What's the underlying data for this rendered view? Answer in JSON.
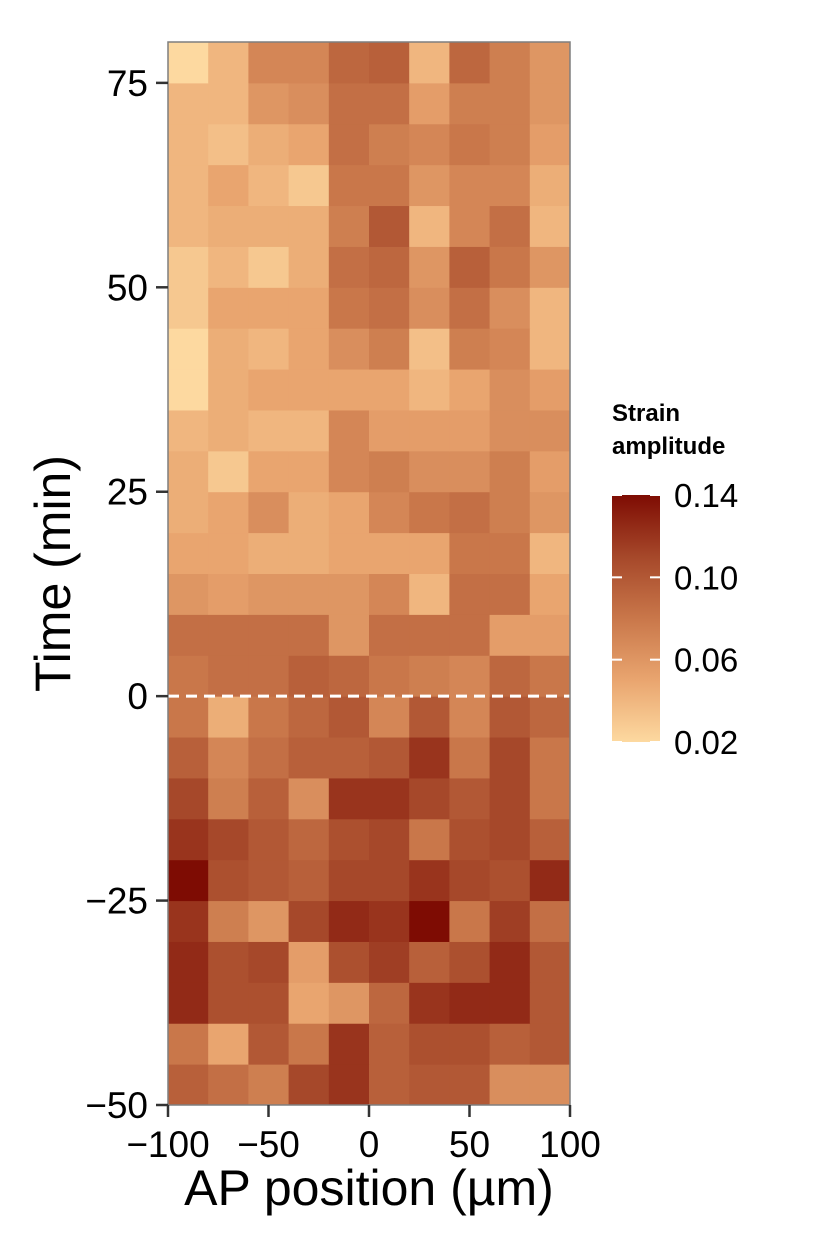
{
  "chart_data": {
    "type": "heatmap",
    "title": "",
    "xlabel": "AP position (µm)",
    "ylabel": "Time (min)",
    "xlim": [
      -100,
      100
    ],
    "ylim": [
      -50,
      80
    ],
    "x_ticks": [
      -100,
      -50,
      0,
      50,
      100
    ],
    "x_tick_labels": [
      "−100",
      "−50",
      "0",
      "50",
      "100"
    ],
    "y_ticks": [
      -50,
      -25,
      0,
      25,
      50,
      75
    ],
    "y_tick_labels": [
      "−50",
      "−25",
      "0",
      "25",
      "50",
      "75"
    ],
    "x_centers": [
      -90,
      -70,
      -50,
      -30,
      -10,
      10,
      30,
      50,
      70,
      90
    ],
    "y_centers": [
      -47.5,
      -42.5,
      -37.5,
      -32.5,
      -27.5,
      -22.5,
      -17.5,
      -12.5,
      -7.5,
      -2.5,
      2.5,
      7.5,
      12.5,
      17.5,
      22.5,
      27.5,
      32.5,
      37.5,
      42.5,
      47.5,
      52.5,
      57.5,
      62.5,
      67.5,
      72.5,
      77.5
    ],
    "z": [
      [
        0.095,
        0.085,
        0.075,
        0.11,
        0.12,
        0.095,
        0.1,
        0.1,
        0.065,
        0.065
      ],
      [
        0.08,
        0.05,
        0.1,
        0.08,
        0.12,
        0.095,
        0.105,
        0.105,
        0.095,
        0.1
      ],
      [
        0.125,
        0.105,
        0.105,
        0.05,
        0.06,
        0.09,
        0.12,
        0.125,
        0.125,
        0.1
      ],
      [
        0.125,
        0.105,
        0.11,
        0.055,
        0.105,
        0.115,
        0.095,
        0.105,
        0.125,
        0.1
      ],
      [
        0.12,
        0.075,
        0.06,
        0.11,
        0.125,
        0.12,
        0.14,
        0.08,
        0.115,
        0.085
      ],
      [
        0.14,
        0.105,
        0.1,
        0.095,
        0.11,
        0.11,
        0.12,
        0.11,
        0.105,
        0.125
      ],
      [
        0.12,
        0.11,
        0.1,
        0.09,
        0.105,
        0.11,
        0.08,
        0.105,
        0.11,
        0.095
      ],
      [
        0.11,
        0.075,
        0.095,
        0.065,
        0.12,
        0.12,
        0.11,
        0.1,
        0.11,
        0.08
      ],
      [
        0.095,
        0.07,
        0.085,
        0.095,
        0.095,
        0.1,
        0.12,
        0.08,
        0.11,
        0.08
      ],
      [
        0.08,
        0.045,
        0.08,
        0.09,
        0.1,
        0.07,
        0.1,
        0.07,
        0.1,
        0.09
      ],
      [
        0.08,
        0.085,
        0.085,
        0.095,
        0.09,
        0.08,
        0.075,
        0.07,
        0.09,
        0.08
      ],
      [
        0.085,
        0.085,
        0.085,
        0.085,
        0.06,
        0.085,
        0.085,
        0.085,
        0.055,
        0.055
      ],
      [
        0.06,
        0.055,
        0.06,
        0.06,
        0.06,
        0.07,
        0.04,
        0.085,
        0.085,
        0.05
      ],
      [
        0.05,
        0.05,
        0.045,
        0.045,
        0.05,
        0.05,
        0.05,
        0.08,
        0.08,
        0.04
      ],
      [
        0.045,
        0.05,
        0.065,
        0.045,
        0.05,
        0.07,
        0.08,
        0.085,
        0.075,
        0.06
      ],
      [
        0.045,
        0.03,
        0.05,
        0.05,
        0.07,
        0.075,
        0.065,
        0.065,
        0.075,
        0.055
      ],
      [
        0.04,
        0.045,
        0.04,
        0.04,
        0.07,
        0.055,
        0.055,
        0.055,
        0.065,
        0.065
      ],
      [
        0.02,
        0.045,
        0.05,
        0.05,
        0.05,
        0.05,
        0.04,
        0.05,
        0.065,
        0.055
      ],
      [
        0.02,
        0.045,
        0.04,
        0.05,
        0.065,
        0.075,
        0.035,
        0.075,
        0.07,
        0.04
      ],
      [
        0.03,
        0.05,
        0.05,
        0.05,
        0.08,
        0.085,
        0.065,
        0.085,
        0.065,
        0.04
      ],
      [
        0.03,
        0.04,
        0.03,
        0.045,
        0.085,
        0.09,
        0.06,
        0.095,
        0.08,
        0.06
      ],
      [
        0.04,
        0.045,
        0.045,
        0.045,
        0.075,
        0.1,
        0.04,
        0.07,
        0.085,
        0.04
      ],
      [
        0.04,
        0.05,
        0.04,
        0.03,
        0.08,
        0.08,
        0.06,
        0.07,
        0.07,
        0.045
      ],
      [
        0.04,
        0.035,
        0.045,
        0.05,
        0.085,
        0.075,
        0.07,
        0.08,
        0.075,
        0.055
      ],
      [
        0.04,
        0.04,
        0.06,
        0.065,
        0.085,
        0.085,
        0.055,
        0.075,
        0.075,
        0.06
      ],
      [
        0.02,
        0.04,
        0.07,
        0.07,
        0.09,
        0.095,
        0.04,
        0.09,
        0.075,
        0.06
      ]
    ],
    "reference_line": {
      "axis": "y",
      "value": 0,
      "style": "dashed",
      "color": "#ffffff"
    },
    "legend": {
      "title_lines": [
        "Strain",
        "amplitude"
      ],
      "ticks": [
        0.14,
        0.1,
        0.06,
        0.02
      ],
      "tick_labels": [
        "0.14",
        "0.10",
        "0.06",
        "0.02"
      ],
      "range": [
        0.02,
        0.14
      ],
      "placement": "right"
    },
    "colorscale": [
      "#fdd9a0",
      "#e9a56f",
      "#c9774a",
      "#a6482a",
      "#7e0c03"
    ],
    "grid": false,
    "panel_border_color": "#7f7f7f"
  }
}
